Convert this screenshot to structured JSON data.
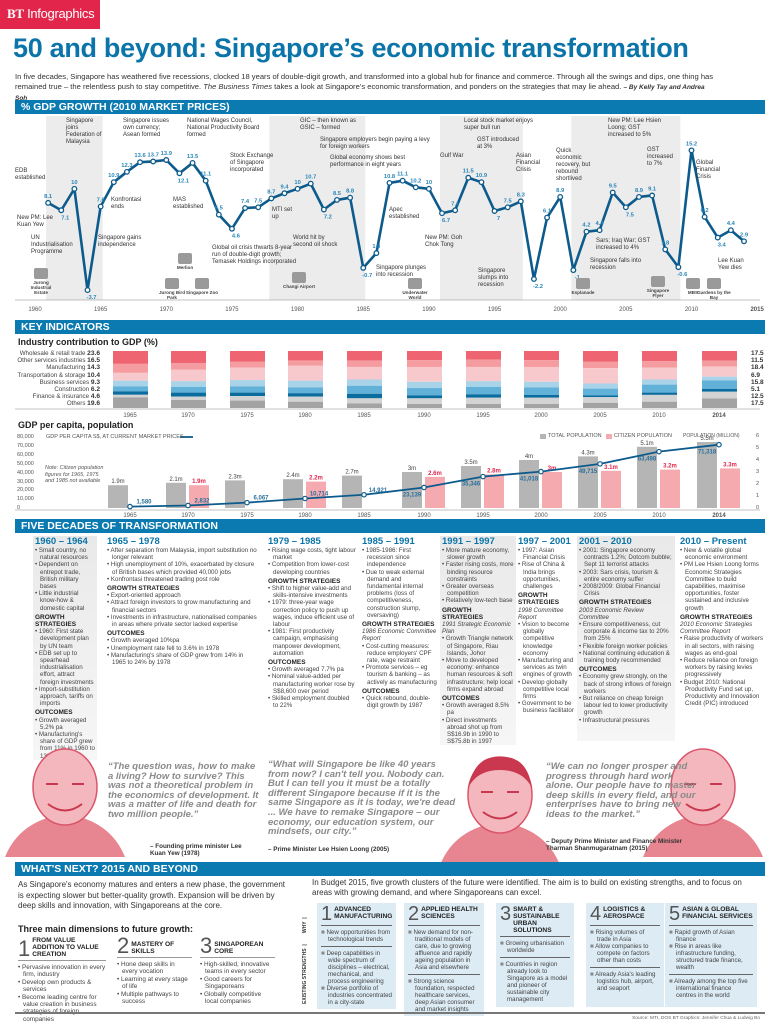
{
  "brand": {
    "bt": "BT",
    "name": "Infographics"
  },
  "title": "50 and beyond: Singapore’s economic transformation",
  "intro": {
    "text1": "In five decades, Singapore has weathered five recessions, clocked 18 years of double-digit growth, and transformed into a global hub for finance and commerce. Through all the swings and dips, one thing has remained true – the relentless push to stay competitive. ",
    "italic": "The Business Times",
    "text2": " takes a look at Singapore’s economic transformation, and ponders on the strategies that may lie ahead. ",
    "byline": "– By Kelly Tay and Andrea Soh"
  },
  "gdp": {
    "header": "% GDP GROWTH (2010 MARKET PRICES)",
    "annotations": [
      "EDB established",
      "Singapore joins Federation of Malaysia",
      "Singapore issues own currency; Asean formed",
      "National Wages Council, National Productivity Board formed",
      "Stock Exchange of Singapore incorporated",
      "Konfrontasi ends",
      "MAS established",
      "New PM: Lee Kuan Yew",
      "UN Industrialisation Programme",
      "Singapore gains independence",
      "Global oil crisis thwarts 8-year run of double-digit growth; Temasek Holdings incorporated",
      "MTI set up",
      "World hit by second oil shock",
      "GIC – then known as GSIC – formed",
      "Singapore employers begin paying a levy for foreign workers",
      "Global economy shows best performance in eight years",
      "Apec established",
      "Singapore plunges into recession",
      "Gulf War",
      "New PM: Goh Chok Tong",
      "Local stock market enjoys super bull run",
      "GST introduced at 3%",
      "Singapore slumps into recession",
      "Asian Financial Crisis",
      "Quick economic recovery, but rebound shortlived",
      "Singapore falls into recession",
      "New PM: Lee Hsien Loong; GST increased to 5%",
      "Sars; Iraq War; GST increased to 4%",
      "GST increased to 7%",
      "Global Financial Crisis",
      "Lee Kuan Yew dies"
    ],
    "landmarks": [
      "Jurong Industrial Estate",
      "Jurong Bird Park",
      "Merlion",
      "Singapore Zoo",
      "Changi Airport",
      "Underwater World",
      "Esplanade",
      "Singapore Flyer",
      "MBS",
      "Gardens by the Bay"
    ]
  },
  "key_indicators": {
    "header": "KEY INDICATORS",
    "industry_title": "Industry contribution to GDP (%)",
    "percapita_title": "GDP per capita, population",
    "note": "Note: Citizen population figures for 1965, 1975 and 1985 not available"
  },
  "chart_data": [
    {
      "type": "line",
      "title": "% GDP growth (2010 market prices)",
      "x": [
        1961,
        1962,
        1963,
        1964,
        1965,
        1966,
        1967,
        1968,
        1969,
        1970,
        1971,
        1972,
        1973,
        1974,
        1975,
        1976,
        1977,
        1978,
        1979,
        1980,
        1981,
        1982,
        1983,
        1984,
        1985,
        1986,
        1987,
        1988,
        1989,
        1990,
        1991,
        1992,
        1993,
        1994,
        1995,
        1996,
        1997,
        1998,
        1999,
        2000,
        2001,
        2002,
        2003,
        2004,
        2005,
        2006,
        2007,
        2008,
        2009,
        2010,
        2011,
        2012,
        2013,
        2014
      ],
      "values": [
        8.1,
        7.1,
        10,
        -3.7,
        7.6,
        10.9,
        12.3,
        13.6,
        13.7,
        13.9,
        12.1,
        13.5,
        11.1,
        6.5,
        4.6,
        7.4,
        7.5,
        8.7,
        9.4,
        10,
        10.7,
        7.2,
        8.5,
        8.8,
        -0.7,
        1.3,
        10.8,
        11.1,
        10.2,
        10,
        6.7,
        7.1,
        11.5,
        10.9,
        7,
        7.5,
        8.3,
        -2.2,
        6.1,
        8.9,
        -1,
        4.2,
        4.4,
        9.5,
        7.5,
        8.9,
        9.1,
        1.8,
        -0.6,
        15.2,
        6.2,
        3.4,
        4.4,
        2.9
      ],
      "xticks": [
        "1960",
        "1965",
        "1970",
        "1975",
        "1980",
        "1985",
        "1990",
        "1995",
        "2000",
        "2005",
        "2010",
        "2015"
      ],
      "ylim": [
        -4,
        16
      ],
      "color": "#0d5b8c"
    },
    {
      "type": "bar",
      "stacked": true,
      "title": "Industry contribution to GDP (%)",
      "categories": [
        "1965",
        "1970",
        "1975",
        "1980",
        "1985",
        "1990",
        "1995",
        "2000",
        "2005",
        "2010",
        "2014"
      ],
      "series": [
        {
          "name": "Wholesale & retail trade",
          "color": "#ee6470",
          "values": [
            23.6,
            21,
            19,
            17,
            17,
            16,
            15,
            16,
            19,
            18,
            17.5
          ]
        },
        {
          "name": "Other services industries",
          "color": "#f59ca1",
          "values": [
            16.5,
            12,
            10,
            9,
            11,
            12,
            13,
            12,
            11,
            11,
            11.5
          ]
        },
        {
          "name": "Manufacturing",
          "color": "#f8c9cc",
          "values": [
            14.3,
            20,
            22,
            26,
            22,
            26,
            25,
            26,
            27,
            21,
            18.4
          ]
        },
        {
          "name": "Transportation & storage",
          "color": "#a8d3e8",
          "values": [
            10.4,
            10,
            11,
            12,
            11,
            11,
            10,
            10,
            9,
            9,
            6.9
          ]
        },
        {
          "name": "Business services",
          "color": "#62b1d8",
          "values": [
            9.3,
            10,
            11,
            10,
            14,
            13,
            13,
            13,
            12,
            14,
            15.8
          ]
        },
        {
          "name": "Construction",
          "color": "#0b6c9e",
          "values": [
            6.2,
            7,
            6,
            6,
            8,
            5,
            6,
            5,
            3,
            4,
            5.1
          ]
        },
        {
          "name": "Finance & insurance",
          "color": "#d3d3d3",
          "values": [
            4.6,
            6,
            8,
            9,
            9,
            10,
            11,
            11,
            10,
            12,
            12.5
          ]
        },
        {
          "name": "Others",
          "color": "#a3a3a3",
          "values": [
            19.6,
            14,
            13,
            11,
            8,
            7,
            7,
            7,
            9,
            11,
            17.5
          ]
        }
      ]
    },
    {
      "type": "bar+line",
      "title": "GDP per capita, population",
      "categories": [
        "1965",
        "1970",
        "1975",
        "1980",
        "1985",
        "1990",
        "1995",
        "2000",
        "2005",
        "2010",
        "2014"
      ],
      "series": [
        {
          "name": "TOTAL POPULATION",
          "unit": "m",
          "color": "#b5b5b5",
          "values": [
            1.9,
            2.1,
            2.3,
            2.4,
            2.7,
            3,
            3.5,
            4,
            4.3,
            5.1,
            5.5
          ]
        },
        {
          "name": "CITIZEN POPULATION",
          "unit": "m",
          "color": "#f5aab0",
          "label_color": "#e2254a",
          "values": [
            null,
            1.9,
            null,
            2.2,
            null,
            2.6,
            2.8,
            3,
            3.1,
            3.2,
            3.3
          ]
        },
        {
          "name": "GDP PER CAPITA S$, AT CURRENT MARKET PRICES",
          "color": "#0d5b8c",
          "values": [
            1580,
            2832,
            6067,
            10714,
            14921,
            23139,
            35346,
            41018,
            49715,
            63498,
            71318
          ]
        }
      ],
      "left_axis": {
        "ticks": [
          "80,000",
          "70,000",
          "60,000",
          "50,000",
          "40,000",
          "30,000",
          "20,000",
          "10,000",
          "0"
        ],
        "ylim": [
          0,
          80000
        ]
      },
      "right_axis": {
        "label": "POPULATION (MILLION)",
        "ticks": [
          "6",
          "5",
          "4",
          "3",
          "2",
          "1",
          "0"
        ],
        "ylim": [
          0,
          6
        ]
      }
    }
  ],
  "decades": {
    "header": "FIVE DECADES OF TRANSFORMATION",
    "columns": [
      {
        "period": "1960 – 1964",
        "intro": [
          "Small country, no natural resources",
          "Dependent on entrepot trade, British military bases",
          "Little industrial know-how & domestic capital"
        ],
        "sh": "GROWTH STRATEGIES",
        "ss": "",
        "strategies": [
          "1960: First state development plan by UN team",
          "EDB set up to spearhead industrialisation effort, attract foreign investments",
          "Import-substitution approach, tariffs on imports"
        ],
        "oh": "OUTCOMES",
        "outcomes": [
          "Growth averaged 5.2% pa",
          "Manufacturing's share of GDP grew from 11% in 1960 to 13% in 1964"
        ]
      },
      {
        "period": "1965 – 1978",
        "intro": [
          "After separation from Malaysia, import substitution no longer relevant",
          "High unemployment of 10%, exacerbated by closure of British bases which provided 40,000 jobs",
          "Konfrontasi threatened trading post role"
        ],
        "sh": "GROWTH STRATEGIES",
        "ss": "",
        "strategies": [
          "Export-oriented approach",
          "Attract foreign investors to grow manufacturing and financial sectors",
          "Investments in infrastructure, nationalised companies in areas where private sector lacked expertise"
        ],
        "oh": "OUTCOMES",
        "outcomes": [
          "Growth averaged 10%pa",
          "Unemployment rate fell to 3.6% in 1978",
          "Manufacturing's share of GDP grew from 14% in 1965 to 24% by 1978"
        ]
      },
      {
        "period": "1979 – 1985",
        "intro": [
          "Rising wage costs, tight labour market",
          "Competition from lower-cost developing countries"
        ],
        "sh": "GROWTH STRATEGIES",
        "ss": "",
        "strategies": [
          "Shift to higher value-add and skills-intensive investments",
          "1979: three-year wage correction policy to push up wages, induce efficient use of labour",
          "1981: First productivity campaign, emphasising manpower development, automation"
        ],
        "oh": "OUTCOMES",
        "outcomes": [
          "Growth averaged 7.7% pa",
          "Nominal value-added per manufacturing worker rose by S$8,600 over period",
          "Skilled employment doubled to 22%"
        ]
      },
      {
        "period": "1985 – 1991",
        "intro": [
          "1985-1986: First recession since independence",
          "Due to weak external demand and fundamental internal problems (loss of competitiveness, construction slump, oversaving)"
        ],
        "sh": "GROWTH STRATEGIES",
        "ss": "1986 Economic Committee Report",
        "strategies": [
          "Cost-cutting measures: reduce employers' CPF rate, wage restraint",
          "Promote services – eg tourism & banking – as actively as manufacturing"
        ],
        "oh": "OUTCOMES",
        "outcomes": [
          "Quick rebound, double-digit growth by 1987"
        ]
      },
      {
        "period": "1991 – 1997",
        "intro": [
          "More mature economy, slower growth",
          "Faster rising costs, more binding resource constraints",
          "Greater overseas competition",
          "Relatively low-tech base"
        ],
        "sh": "GROWTH STRATEGIES",
        "ss": "1991 Strategic Economic Plan",
        "strategies": [
          "Growth Triangle network of Singapore, Riau Islands, Johor",
          "Move to developed economy: enhance human resources & soft infrastructure; help local firms expand abroad"
        ],
        "oh": "OUTCOMES",
        "outcomes": [
          "Growth averaged 8.5% pa",
          "Direct investments abroad shot up from S$16.9b in 1990 to S$75.8b in 1997"
        ]
      },
      {
        "period": "1997 – 2001",
        "intro": [
          "1997: Asian Financial Crisis",
          "Rise of China & India brings opportunities, challenges"
        ],
        "sh": "GROWTH STRATEGIES",
        "ss": "1998 Committee Report",
        "strategies": [
          "Vision to become globally competitive knowledge economy",
          "Manufacturing and services as twin engines of growth",
          "Develop globally competitive local firms",
          "Government to be business facilitator"
        ],
        "oh": "",
        "outcomes": []
      },
      {
        "period": "2001 – 2010",
        "intro": [
          "2001: Singapore economy contracts 1.2%; Dotcom bubble; Sept 11 terrorist attacks",
          "2003: Sars crisis, tourism & entire economy suffer",
          "2008/2009: Global Financial Crisis"
        ],
        "sh": "GROWTH STRATEGIES",
        "ss": "2003 Economic Review Committee",
        "strategies": [
          "Ensure competitiveness, cut corporate & income tax to 20% from 25%",
          "Flexible foreign worker policies",
          "National continuing education & training body recommended"
        ],
        "oh": "OUTCOMES",
        "outcomes": [
          "Economy grew strongly, on the back of strong inflows of foreign workers",
          "But reliance on cheap foreign labour led to lower productivity growth",
          "Infrastructural pressures"
        ]
      },
      {
        "period": "2010 – Present",
        "intro": [
          "New & volatile global economic environment",
          "PM Lee Hsien Loong forms Economic Strategies Committee to build capabilities, maximise opportunities, foster sustained and inclusive growth"
        ],
        "sh": "GROWTH STRATEGIES",
        "ss": "2010 Economic Strategies Committee Report",
        "strategies": [
          "Raise productivity of workers in all sectors, with raising wages as end-goal",
          "Reduce reliance on foreign workers by raising levies progressively",
          "Budget 2010: National Productivity Fund set up, Productivity and Innovation Credit (PIC) introduced"
        ],
        "oh": "",
        "outcomes": []
      }
    ]
  },
  "quotes": [
    {
      "text": "“The question was, how to make a living? How to survive? This was not a theoretical problem in the economics of development. It was a matter of life and death for two million people.”",
      "by": "– Founding prime minister Lee Kuan Yew (1978)"
    },
    {
      "text": "“What will Singapore be like 40 years from now? I can't tell you. Nobody can. But I can tell you it must be a totally different Singapore because if it is the same Singapore as it is today, we're dead ... We have to remake Singapore – our economy, our education system, our mindsets, our city.”",
      "by": "– Prime Minister Lee Hsien Loong (2005)"
    },
    {
      "text": "“We can no longer prosper and progress through hard work alone. Our people have to master deep skills in every field, and our enterprises have to bring new ideas to the market.”",
      "by": "– Deputy Prime Minister and Finance Minister Tharman Shanmugaratnam (2015)"
    }
  ],
  "next": {
    "header": "WHAT'S NEXT? 2015 AND BEYOND",
    "intro": "As Singapore's economy matures and enters a new phase, the government is expecting slower but better-quality growth. Expansion will be driven by deep skills and innovation, with Singaporeans at the core.",
    "dims_title": "Three main dimensions to future growth:",
    "dims": [
      {
        "n": "1",
        "t": "FROM VALUE ADDITION TO VALUE CREATION",
        "b": [
          "Pervasive innovation in every firm, industry",
          "Develop own products & services",
          "Become leading centre for value creation in business strategies of foreign companies"
        ]
      },
      {
        "n": "2",
        "t": "MASTERY OF SKILLS",
        "b": [
          "Hone deep skills in every vocation",
          "Learning at every stage of life",
          "Multiple pathways to success"
        ]
      },
      {
        "n": "3",
        "t": "SINGAPOREAN CORE",
        "b": [
          "High-skilled, innovative teams in every sector",
          "Good careers for Singaporeans",
          "Globally competitive local companies"
        ]
      }
    ],
    "clusters_intro": "In Budget 2015, five growth clusters of the future were identified. The aim is to build on existing strengths, and to focus on areas with growing demand, and where Singaporeans can excel.",
    "side_why": "WHY",
    "side_strengths": "EXISTING STRENGTHS",
    "clusters": [
      {
        "n": "1",
        "t": "ADVANCED MANUFACTURING",
        "why": [
          "New opportunities from technological trends"
        ],
        "str": [
          "Deep capabilities in wide spectrum of disciplines – electrical, mechanical, and process engineering",
          "Diverse portfolio of industries concentrated in a city-state"
        ]
      },
      {
        "n": "2",
        "t": "APPLIED HEALTH SCIENCES",
        "why": [
          "New demand for non-traditional models of care, due to growing affluence and rapidly ageing population in Asia and elsewhere"
        ],
        "str": [
          "Strong science foundation, respected healthcare services, deep Asian consumer and market insights"
        ]
      },
      {
        "n": "3",
        "t": "SMART & SUSTAINABLE URBAN SOLUTIONS",
        "why": [
          "Growing urbanisation worldwide"
        ],
        "str": [
          "Countries in region already look to Singapore as a model and pioneer of sustainable city management"
        ]
      },
      {
        "n": "4",
        "t": "LOGISTICS & AEROSPACE",
        "why": [
          "Rising volumes of trade in Asia",
          "Allow companies to compete on factors other than costs"
        ],
        "str": [
          "Already Asia's leading logistics hub, airport, and seaport"
        ]
      },
      {
        "n": "5",
        "t": "ASIAN & GLOBAL FINANCIAL SERVICES",
        "why": [
          "Rapid growth of Asian finance",
          "Rise in areas like infrastructure funding, structured trade finance, wealth"
        ],
        "str": [
          "Already among the top five international finance centres in the world"
        ]
      }
    ]
  },
  "source": "Source: MTI, DOS   BT Graphics: Jennifer Chua & Ludwig Bo"
}
